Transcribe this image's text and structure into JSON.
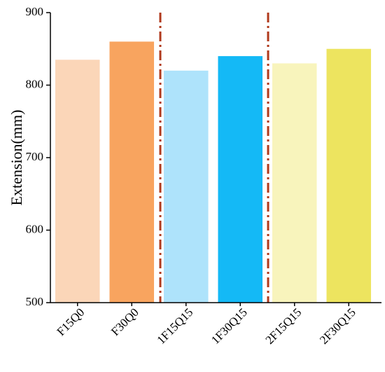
{
  "chart_data": {
    "type": "bar",
    "y_label": "Extension(mm)",
    "categories": [
      "F15Q0",
      "F30Q0",
      "1F15Q15",
      "1F30Q15",
      "2F15Q15",
      "2F30Q15"
    ],
    "values": [
      835,
      860,
      820,
      840,
      830,
      850
    ],
    "colors": [
      "#fbd6b8",
      "#f8a45f",
      "#aee3fb",
      "#14b9f6",
      "#f8f4bc",
      "#ede45f"
    ],
    "ylim": [
      500,
      900
    ],
    "yticks": [
      500,
      600,
      700,
      800,
      900
    ],
    "grid": false
  }
}
